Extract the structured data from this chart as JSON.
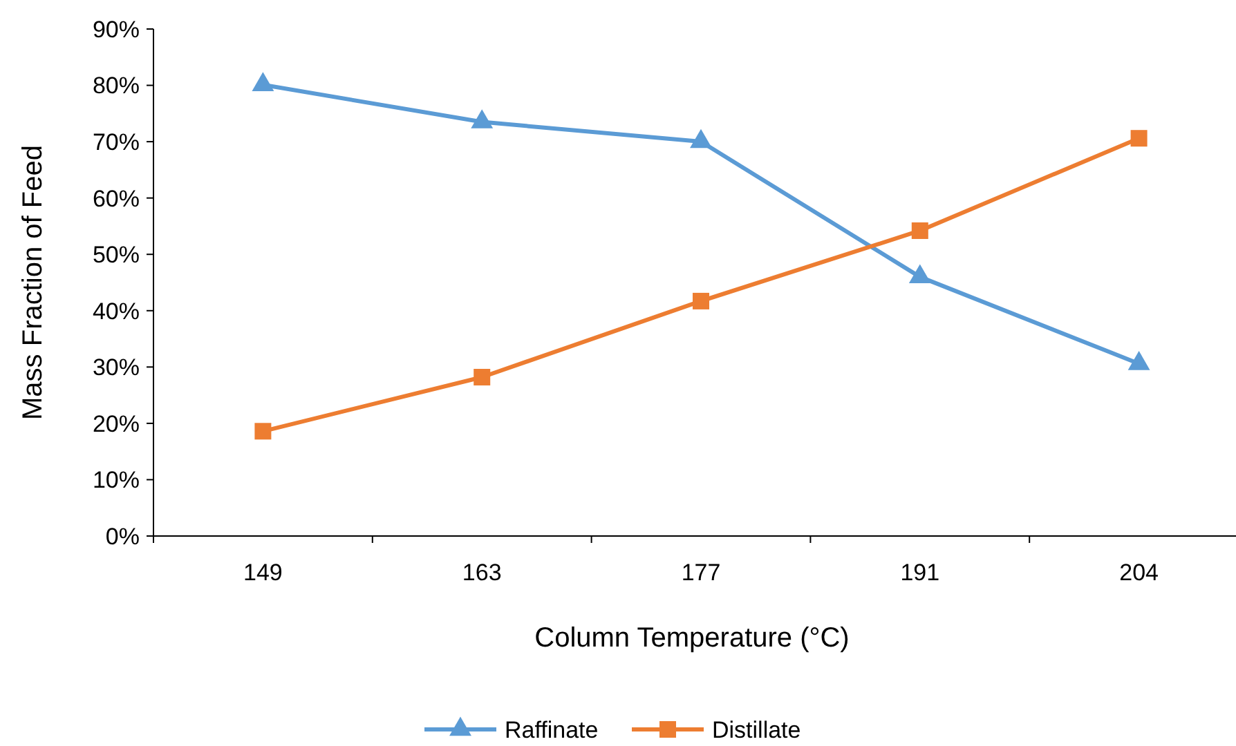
{
  "chart_data": {
    "type": "line",
    "xlabel": "Column Temperature (°C)",
    "ylabel": "Mass Fraction of Feed",
    "categories": [
      "149",
      "163",
      "177",
      "191",
      "204"
    ],
    "ylim": [
      0,
      90
    ],
    "yticks": [
      {
        "value": 0,
        "label": "0%"
      },
      {
        "value": 10,
        "label": "10%"
      },
      {
        "value": 20,
        "label": "20%"
      },
      {
        "value": 30,
        "label": "30%"
      },
      {
        "value": 40,
        "label": "40%"
      },
      {
        "value": 50,
        "label": "50%"
      },
      {
        "value": 60,
        "label": "60%"
      },
      {
        "value": 70,
        "label": "70%"
      },
      {
        "value": 80,
        "label": "80%"
      },
      {
        "value": 90,
        "label": "90%"
      }
    ],
    "grid": false,
    "legend": "bottom",
    "line_style": "solid",
    "series": [
      {
        "name": "Raffinate",
        "color": "#5b9bd5",
        "marker": "triangle",
        "values": [
          80.1,
          73.5,
          70,
          46,
          30.6
        ]
      },
      {
        "name": "Distillate",
        "color": "#ed7d31",
        "marker": "square",
        "values": [
          18.6,
          28.2,
          41.7,
          54.2,
          70.6
        ]
      }
    ]
  }
}
